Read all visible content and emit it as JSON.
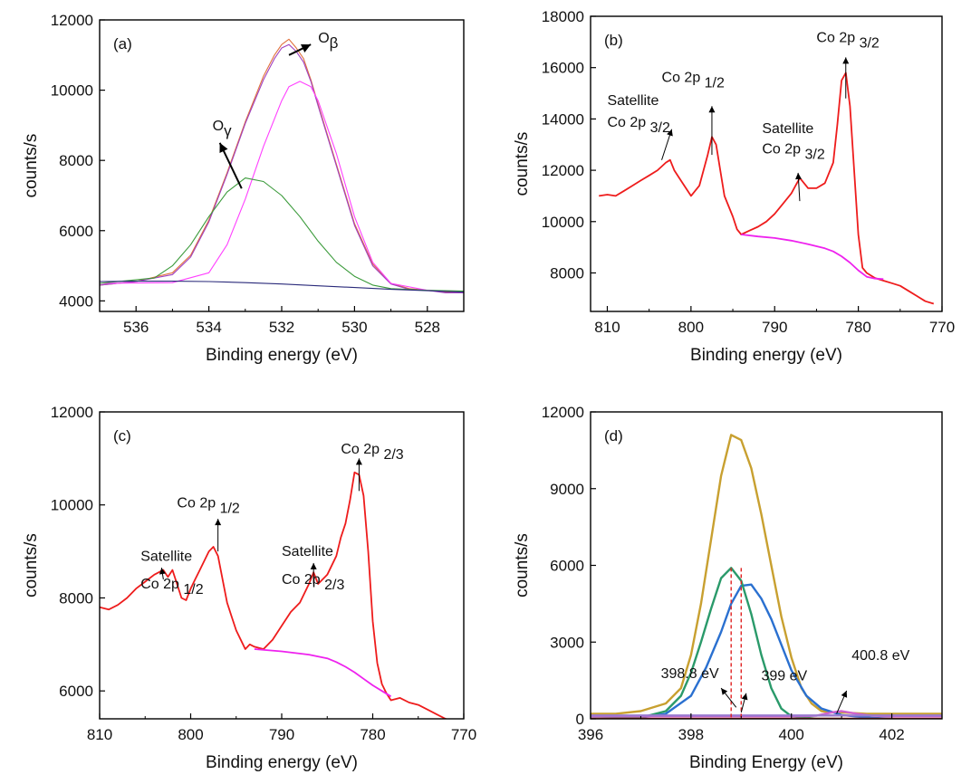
{
  "chart_data": [
    {
      "type": "line",
      "panel_label": "(a)",
      "xlabel": "Binding energy (eV)",
      "ylabel": "counts/s",
      "xlim": [
        537,
        527
      ],
      "ylim": [
        3700,
        12000
      ],
      "xticks": [
        536,
        534,
        532,
        530,
        528
      ],
      "yticks": [
        4000,
        6000,
        8000,
        10000,
        12000
      ],
      "series": [
        {
          "color": "#e0703c",
          "x": [
            537,
            536,
            535,
            534.5,
            534,
            533.5,
            533,
            532.5,
            532.2,
            532,
            531.8,
            531.6,
            531.4,
            531.2,
            531,
            530.5,
            530,
            529.5,
            529,
            528.5,
            528,
            527.5,
            527
          ],
          "y": [
            4450,
            4550,
            4800,
            5300,
            6300,
            7650,
            9100,
            10400,
            11000,
            11300,
            11450,
            11200,
            10900,
            10300,
            9600,
            7900,
            6200,
            5050,
            4500,
            4350,
            4300,
            4250,
            4250
          ]
        },
        {
          "color": "#a040c0",
          "x": [
            537,
            536,
            535,
            534.5,
            534,
            533.5,
            533,
            532.5,
            532.2,
            532,
            531.8,
            531.6,
            531.4,
            531.2,
            531,
            530.5,
            530,
            529.5,
            529,
            528.5,
            528,
            527.5,
            527
          ],
          "y": [
            4450,
            4550,
            4750,
            5250,
            6250,
            7600,
            9050,
            10300,
            10900,
            11200,
            11300,
            11100,
            10800,
            10250,
            9550,
            7850,
            6150,
            5000,
            4480,
            4330,
            4300,
            4230,
            4230
          ]
        },
        {
          "color": "#ff40ff",
          "x": [
            537,
            535,
            534,
            533.5,
            533,
            532.5,
            532,
            531.8,
            531.5,
            531.2,
            531,
            530.5,
            530,
            529.5,
            529,
            528,
            527
          ],
          "y": [
            4500,
            4520,
            4800,
            5600,
            6900,
            8400,
            9700,
            10100,
            10250,
            10100,
            9700,
            8200,
            6400,
            5100,
            4500,
            4300,
            4250
          ]
        },
        {
          "color": "#3a9a3a",
          "x": [
            537,
            535.5,
            535,
            534.5,
            534,
            533.5,
            533,
            532.5,
            532,
            531.5,
            531,
            530.5,
            530,
            529.5,
            529,
            528,
            527
          ],
          "y": [
            4500,
            4650,
            5000,
            5600,
            6400,
            7100,
            7500,
            7400,
            7000,
            6400,
            5700,
            5100,
            4700,
            4450,
            4350,
            4300,
            4280
          ]
        },
        {
          "color": "#2a2a7a",
          "x": [
            537,
            536,
            535,
            534,
            533,
            532,
            531,
            530,
            529,
            528,
            527
          ],
          "y": [
            4550,
            4560,
            4560,
            4550,
            4520,
            4480,
            4430,
            4380,
            4330,
            4290,
            4250
          ]
        }
      ],
      "annotations": [
        {
          "label": "Oγ",
          "text_x": 533.9,
          "text_y": 8850,
          "arrow_from": [
            533.1,
            7200
          ],
          "arrow_to": [
            533.7,
            8500
          ]
        },
        {
          "label": "Oβ",
          "text_x": 531,
          "text_y": 11350,
          "arrow_from": [
            531.8,
            11000
          ],
          "arrow_to": [
            531.2,
            11300
          ]
        }
      ]
    },
    {
      "type": "line",
      "panel_label": "(b)",
      "xlabel": "Binding energy (eV)",
      "ylabel": "counts/s",
      "xlim": [
        812,
        770
      ],
      "ylim": [
        6500,
        18000
      ],
      "xticks": [
        810,
        800,
        790,
        780,
        770
      ],
      "yticks": [
        8000,
        10000,
        12000,
        14000,
        16000,
        18000
      ],
      "series": [
        {
          "color": "#ee1c1c",
          "x": [
            811,
            810,
            809,
            808,
            807,
            806,
            805,
            804,
            803,
            802.5,
            802,
            801,
            800,
            799,
            798.5,
            798,
            797.5,
            797,
            796.5,
            796,
            795,
            794.5,
            794,
            793,
            792,
            791,
            790,
            789,
            788,
            787.5,
            787,
            786,
            785,
            784,
            783,
            782.5,
            782,
            781.5,
            781,
            780.5,
            780,
            779.5,
            779,
            778,
            777,
            776,
            775,
            774,
            773,
            772,
            771
          ],
          "y": [
            11000,
            11050,
            11000,
            11200,
            11400,
            11600,
            11800,
            12000,
            12300,
            12400,
            12000,
            11500,
            11000,
            11400,
            12000,
            12600,
            13300,
            13000,
            12000,
            11000,
            10200,
            9700,
            9500,
            9650,
            9800,
            10000,
            10300,
            10700,
            11100,
            11400,
            11700,
            11300,
            11300,
            11500,
            12300,
            13800,
            15500,
            15800,
            14500,
            12000,
            9500,
            8200,
            8000,
            7800,
            7700,
            7600,
            7500,
            7300,
            7100,
            6900,
            6800
          ]
        },
        {
          "color": "#ee22ee",
          "x": [
            794,
            792,
            790,
            788,
            786,
            784,
            783,
            782,
            781,
            780,
            779,
            778,
            777
          ],
          "y": [
            9500,
            9420,
            9360,
            9260,
            9120,
            8960,
            8840,
            8650,
            8400,
            8100,
            7850,
            7780,
            7760
          ]
        }
      ],
      "annotations": [
        {
          "label": "Satellite",
          "text_x": 810,
          "text_y": 14550
        },
        {
          "label": "Co 2p 3/2",
          "text_x": 810,
          "text_y": 13700
        },
        {
          "label": "Co 2p 1/2",
          "text_x": 803.5,
          "text_y": 15450
        },
        {
          "label": "Satellite",
          "text_x": 791.5,
          "text_y": 13450
        },
        {
          "label": "Co 2p 3/2",
          "text_x": 791.5,
          "text_y": 12650
        },
        {
          "label": "Co 2p 3/2",
          "text_x": 785,
          "text_y": 17000
        }
      ]
    },
    {
      "type": "line",
      "panel_label": "(c)",
      "xlabel": "Binding energy (eV)",
      "ylabel": "counts/s",
      "xlim": [
        810,
        770
      ],
      "ylim": [
        5400,
        12000
      ],
      "xticks": [
        810,
        800,
        790,
        780,
        770
      ],
      "yticks": [
        6000,
        8000,
        10000,
        12000
      ],
      "series": [
        {
          "color": "#ee1c1c",
          "x": [
            810,
            809,
            808,
            807,
            806,
            805,
            804,
            803,
            802.5,
            802,
            801.5,
            801,
            800.5,
            800,
            799.5,
            799,
            798.5,
            798,
            797.5,
            797,
            796.5,
            796,
            795.5,
            795,
            794.5,
            794,
            793.5,
            793,
            792,
            791,
            790,
            789,
            788,
            787,
            786.5,
            786,
            785,
            784,
            783.5,
            783,
            782.5,
            782,
            781.5,
            781,
            780.5,
            780,
            779.5,
            779,
            778.5,
            778,
            777,
            776,
            775,
            774,
            773,
            772,
            771
          ],
          "y": [
            7800,
            7750,
            7850,
            8000,
            8200,
            8350,
            8500,
            8600,
            8450,
            8600,
            8300,
            8000,
            7950,
            8200,
            8400,
            8600,
            8800,
            9000,
            9100,
            8900,
            8400,
            7900,
            7600,
            7300,
            7100,
            6900,
            7000,
            6950,
            6900,
            7100,
            7400,
            7700,
            7900,
            8300,
            8550,
            8300,
            8500,
            8900,
            9300,
            9600,
            10100,
            10700,
            10650,
            10200,
            9000,
            7500,
            6600,
            6150,
            5950,
            5800,
            5850,
            5750,
            5700,
            5600,
            5500,
            5400,
            5350
          ]
        },
        {
          "color": "#ee22ee",
          "x": [
            793,
            790,
            787,
            785,
            784,
            783,
            782,
            781,
            780,
            779,
            778
          ],
          "y": [
            6900,
            6850,
            6780,
            6700,
            6620,
            6520,
            6400,
            6260,
            6120,
            6000,
            5880
          ]
        }
      ],
      "annotations": [
        {
          "label": "Satellite",
          "text_x": 805.5,
          "text_y": 8800
        },
        {
          "label": "Co 2p 1/2",
          "text_x": 805.5,
          "text_y": 8200
        },
        {
          "label": "Co 2p 1/2",
          "text_x": 801.5,
          "text_y": 9950
        },
        {
          "label": "Satellite",
          "text_x": 790,
          "text_y": 8900
        },
        {
          "label": "Co 2p 2/3",
          "text_x": 790,
          "text_y": 8300
        },
        {
          "label": "Co 2p 2/3",
          "text_x": 783.5,
          "text_y": 11100
        }
      ]
    },
    {
      "type": "line",
      "panel_label": "(d)",
      "xlabel": "Binding Energy (eV)",
      "ylabel": "counts/s",
      "xlim": [
        396,
        403
      ],
      "ylim": [
        0,
        12000
      ],
      "xticks": [
        396,
        398,
        400,
        402
      ],
      "yticks": [
        0,
        3000,
        6000,
        9000,
        12000
      ],
      "series": [
        {
          "color": "#c8a030",
          "x": [
            396,
            396.5,
            397,
            397.5,
            397.8,
            398,
            398.2,
            398.4,
            398.6,
            398.8,
            399,
            399.2,
            399.4,
            399.6,
            399.8,
            400,
            400.2,
            400.4,
            400.6,
            400.8,
            401,
            401.5,
            402,
            402.5,
            403
          ],
          "y": [
            200,
            200,
            300,
            600,
            1200,
            2500,
            4500,
            7000,
            9500,
            11100,
            10900,
            9800,
            8000,
            6000,
            4000,
            2400,
            1200,
            600,
            300,
            250,
            250,
            200,
            200,
            200,
            200
          ]
        },
        {
          "color": "#2a70d0",
          "x": [
            396,
            397,
            397.5,
            398,
            398.3,
            398.6,
            398.8,
            399,
            399.2,
            399.4,
            399.6,
            399.8,
            400,
            400.3,
            400.6,
            401,
            401.5,
            402
          ],
          "y": [
            0,
            50,
            200,
            900,
            2000,
            3400,
            4500,
            5200,
            5250,
            4700,
            3900,
            2900,
            1900,
            900,
            400,
            150,
            50,
            0
          ]
        },
        {
          "color": "#2a9a6a",
          "x": [
            396,
            397,
            397.5,
            397.8,
            398,
            398.2,
            398.4,
            398.6,
            398.8,
            399,
            399.2,
            399.4,
            399.6,
            399.8,
            400,
            400.5,
            401
          ],
          "y": [
            0,
            50,
            300,
            900,
            1800,
            3000,
            4300,
            5500,
            5900,
            5400,
            4100,
            2500,
            1200,
            400,
            100,
            0,
            0
          ]
        },
        {
          "color": "#cf60cf",
          "x": [
            396,
            400,
            400.5,
            400.8,
            401,
            401.3,
            401.6,
            402,
            403
          ],
          "y": [
            100,
            100,
            120,
            250,
            300,
            200,
            120,
            100,
            100
          ]
        },
        {
          "color": "#9a7ad0",
          "x": [
            396,
            398,
            400,
            402,
            403
          ],
          "y": [
            130,
            130,
            130,
            130,
            130
          ]
        },
        {
          "color": "#d03030",
          "x": [
            396,
            403
          ],
          "y": [
            0,
            0
          ]
        }
      ],
      "reference_lines": [
        398.8,
        399
      ],
      "annotations": [
        {
          "label": "398.8 eV",
          "text_x": 397.4,
          "text_y": 1600
        },
        {
          "label": "399 eV",
          "text_x": 399.4,
          "text_y": 1500
        },
        {
          "label": "400.8 eV",
          "text_x": 401.2,
          "text_y": 2300
        }
      ]
    }
  ]
}
